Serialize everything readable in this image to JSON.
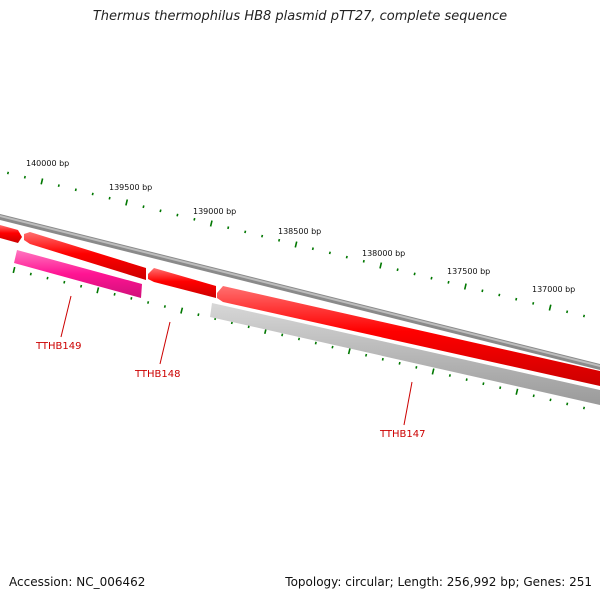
{
  "title": "Thermus thermophilus HB8 plasmid pTT27, complete sequence",
  "footer": {
    "accession": "Accession: NC_006462",
    "info": "Topology: circular; Length: 256,992 bp; Genes: 251"
  },
  "colors": {
    "backbone": "#8a8a8a",
    "forward_gene": "#ff0000",
    "reverse_gene_highlight": "#ff1493",
    "reverse_gene_other": "#b8b8b8",
    "ticks": "#007700",
    "gene_label": "#cc0000"
  },
  "position_ticks": [
    "140000 bp",
    "139500 bp",
    "139000 bp",
    "138500 bp",
    "138000 bp",
    "137500 bp",
    "137000 bp"
  ],
  "genes": [
    {
      "label": "TTHB149"
    },
    {
      "label": "TTHB148"
    },
    {
      "label": "TTHB147"
    }
  ]
}
